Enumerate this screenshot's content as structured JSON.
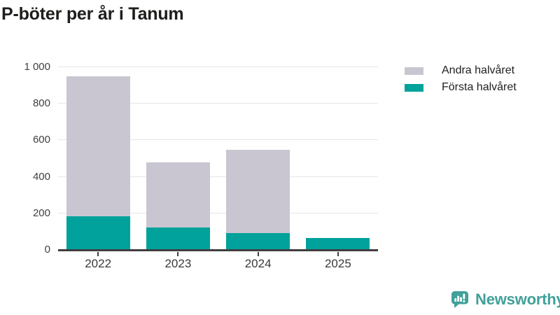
{
  "title": "P-böter per år i Tanum",
  "chart_data": {
    "type": "bar",
    "stacked": true,
    "title": "P-böter per år i Tanum",
    "xlabel": "",
    "ylabel": "",
    "categories": [
      "2022",
      "2023",
      "2024",
      "2025"
    ],
    "series": [
      {
        "name": "Första halvåret",
        "color": "#00a29b",
        "values": [
          180,
          120,
          90,
          60
        ]
      },
      {
        "name": "Andra halvåret",
        "color": "#c9c6d1",
        "values": [
          765,
          355,
          455,
          0
        ]
      }
    ],
    "totals": [
      945,
      475,
      545,
      60
    ],
    "ylim": [
      0,
      1000
    ],
    "yticks": [
      {
        "value": 0,
        "label": "0"
      },
      {
        "value": 200,
        "label": "200"
      },
      {
        "value": 400,
        "label": "400"
      },
      {
        "value": 600,
        "label": "600"
      },
      {
        "value": 800,
        "label": "800"
      },
      {
        "value": 1000,
        "label": "1 000"
      }
    ],
    "grid": "horizontal",
    "legend_position": "top-right"
  },
  "legend": {
    "items": [
      {
        "label": "Andra halvåret",
        "color": "#c9c6d1"
      },
      {
        "label": "Första halvåret",
        "color": "#00a29b"
      }
    ]
  },
  "branding": {
    "logo_text": "Newsworthy",
    "logo_icon": "bar-chart-speech-bubble-icon",
    "color": "#41a09a"
  }
}
